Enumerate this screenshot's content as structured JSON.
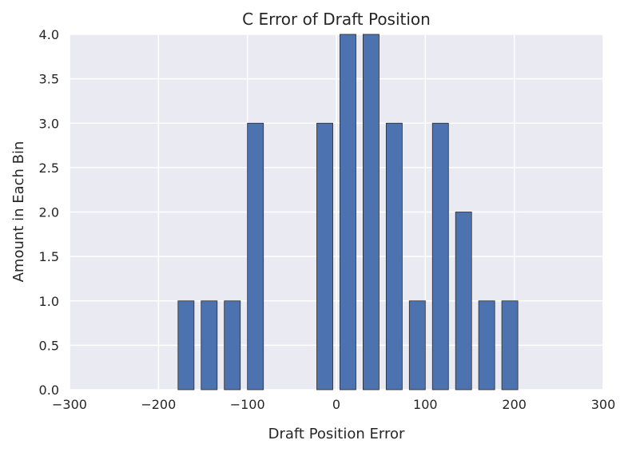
{
  "chart_data": {
    "type": "bar",
    "title": "C Error of Draft Position",
    "xlabel": "Draft Position Error",
    "ylabel": "Amount in Each Bin",
    "xlim": [
      -300,
      300
    ],
    "ylim": [
      0,
      4
    ],
    "xticks": [
      -300,
      -200,
      -100,
      0,
      100,
      200,
      300
    ],
    "xtick_labels": [
      "−300",
      "−200",
      "−100",
      "0",
      "100",
      "200",
      "300"
    ],
    "yticks": [
      0,
      0.5,
      1,
      1.5,
      2,
      2.5,
      3,
      3.5,
      4
    ],
    "ytick_labels": [
      "0.0",
      "0.5",
      "1.0",
      "1.5",
      "2.0",
      "2.5",
      "3.0",
      "3.5",
      "4.0"
    ],
    "bar_width": 18,
    "bars": [
      {
        "x_start": -178,
        "value": 1
      },
      {
        "x_start": -152,
        "value": 1
      },
      {
        "x_start": -126,
        "value": 1
      },
      {
        "x_start": -100,
        "value": 3
      },
      {
        "x_start": -22,
        "value": 3
      },
      {
        "x_start": 4,
        "value": 4
      },
      {
        "x_start": 30,
        "value": 4
      },
      {
        "x_start": 56,
        "value": 3
      },
      {
        "x_start": 82,
        "value": 1
      },
      {
        "x_start": 108,
        "value": 3
      },
      {
        "x_start": 134,
        "value": 2
      },
      {
        "x_start": 160,
        "value": 1
      },
      {
        "x_start": 186,
        "value": 1
      }
    ],
    "grid": true,
    "colors": {
      "bar_fill": "#4C72B0",
      "bar_edge": "#2b2b2b",
      "plot_background": "#EAEAF2",
      "grid": "#ffffff",
      "text": "#262626"
    }
  }
}
